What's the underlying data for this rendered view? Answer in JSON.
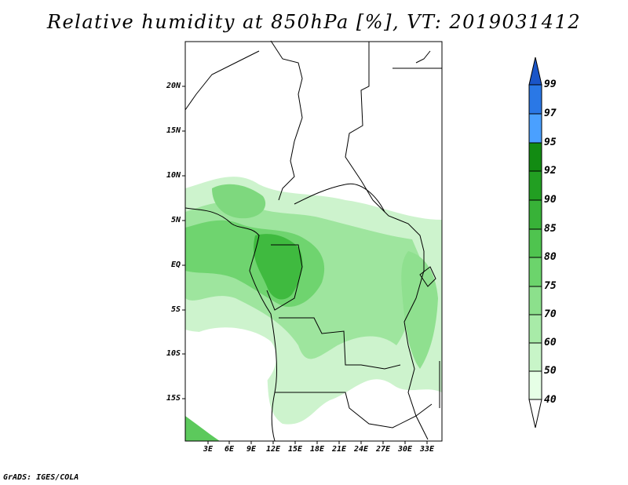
{
  "title": "Relative humidity at 850hPa [%], VT: 2019031412",
  "credit": "GrADS: IGES/COLA",
  "lat_labels": [
    "20N",
    "15N",
    "10N",
    "5N",
    "EQ",
    "5S",
    "10S",
    "15S"
  ],
  "lon_labels": [
    "3E",
    "6E",
    "9E",
    "12E",
    "15E",
    "18E",
    "21E",
    "24E",
    "27E",
    "30E",
    "33E"
  ],
  "colorbar": {
    "levels": [
      "40",
      "50",
      "60",
      "70",
      "75",
      "80",
      "85",
      "90",
      "92",
      "95",
      "97",
      "99"
    ],
    "colors": [
      "#ffffff",
      "#e6ffe6",
      "#c8f5c8",
      "#a8eba8",
      "#8ce08c",
      "#6cd46c",
      "#4fc44f",
      "#38b238",
      "#229f22",
      "#128b12",
      "#4aa0ff",
      "#2a78e6",
      "#1a55c8"
    ]
  }
}
